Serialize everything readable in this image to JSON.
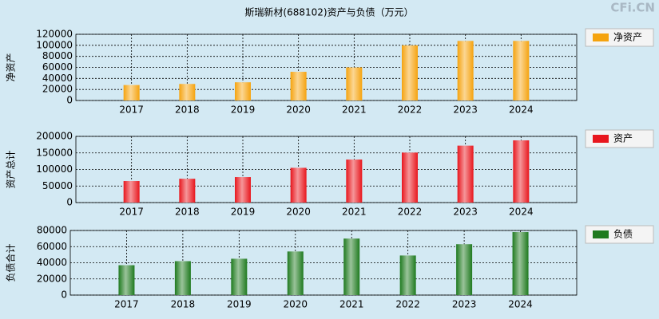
{
  "title": "斯瑞新材(688102)资产与负债（万元）",
  "watermark": "CFi.CN",
  "chart_data": [
    {
      "type": "bar",
      "ylabel": "净资产",
      "categories": [
        "2017",
        "2018",
        "2019",
        "2020",
        "2021",
        "2022",
        "2023",
        "2024"
      ],
      "series": [
        {
          "name": "净资产",
          "color": "#f5a30f",
          "values": [
            28000,
            30000,
            33000,
            52000,
            60000,
            100000,
            108000,
            108000
          ]
        }
      ],
      "ylim": [
        0,
        120000
      ],
      "yticks": [
        0,
        20000,
        40000,
        60000,
        80000,
        100000,
        120000
      ],
      "grid": true,
      "legend": "right"
    },
    {
      "type": "bar",
      "ylabel": "资产总计",
      "categories": [
        "2017",
        "2018",
        "2019",
        "2020",
        "2021",
        "2022",
        "2023",
        "2024"
      ],
      "series": [
        {
          "name": "资产",
          "color": "#e8161d",
          "values": [
            65000,
            72000,
            77000,
            105000,
            130000,
            151000,
            172000,
            188000
          ]
        }
      ],
      "ylim": [
        0,
        200000
      ],
      "yticks": [
        0,
        50000,
        100000,
        150000,
        200000
      ],
      "grid": true,
      "legend": "right"
    },
    {
      "type": "bar",
      "ylabel": "负债合计",
      "categories": [
        "2017",
        "2018",
        "2019",
        "2020",
        "2021",
        "2022",
        "2023",
        "2024"
      ],
      "series": [
        {
          "name": "负债",
          "color": "#1f7a1f",
          "values": [
            37000,
            42000,
            45000,
            54000,
            70000,
            49000,
            63000,
            78000
          ]
        }
      ],
      "ylim": [
        0,
        80000
      ],
      "yticks": [
        0,
        20000,
        40000,
        60000,
        80000
      ],
      "grid": true,
      "legend": "right"
    }
  ]
}
